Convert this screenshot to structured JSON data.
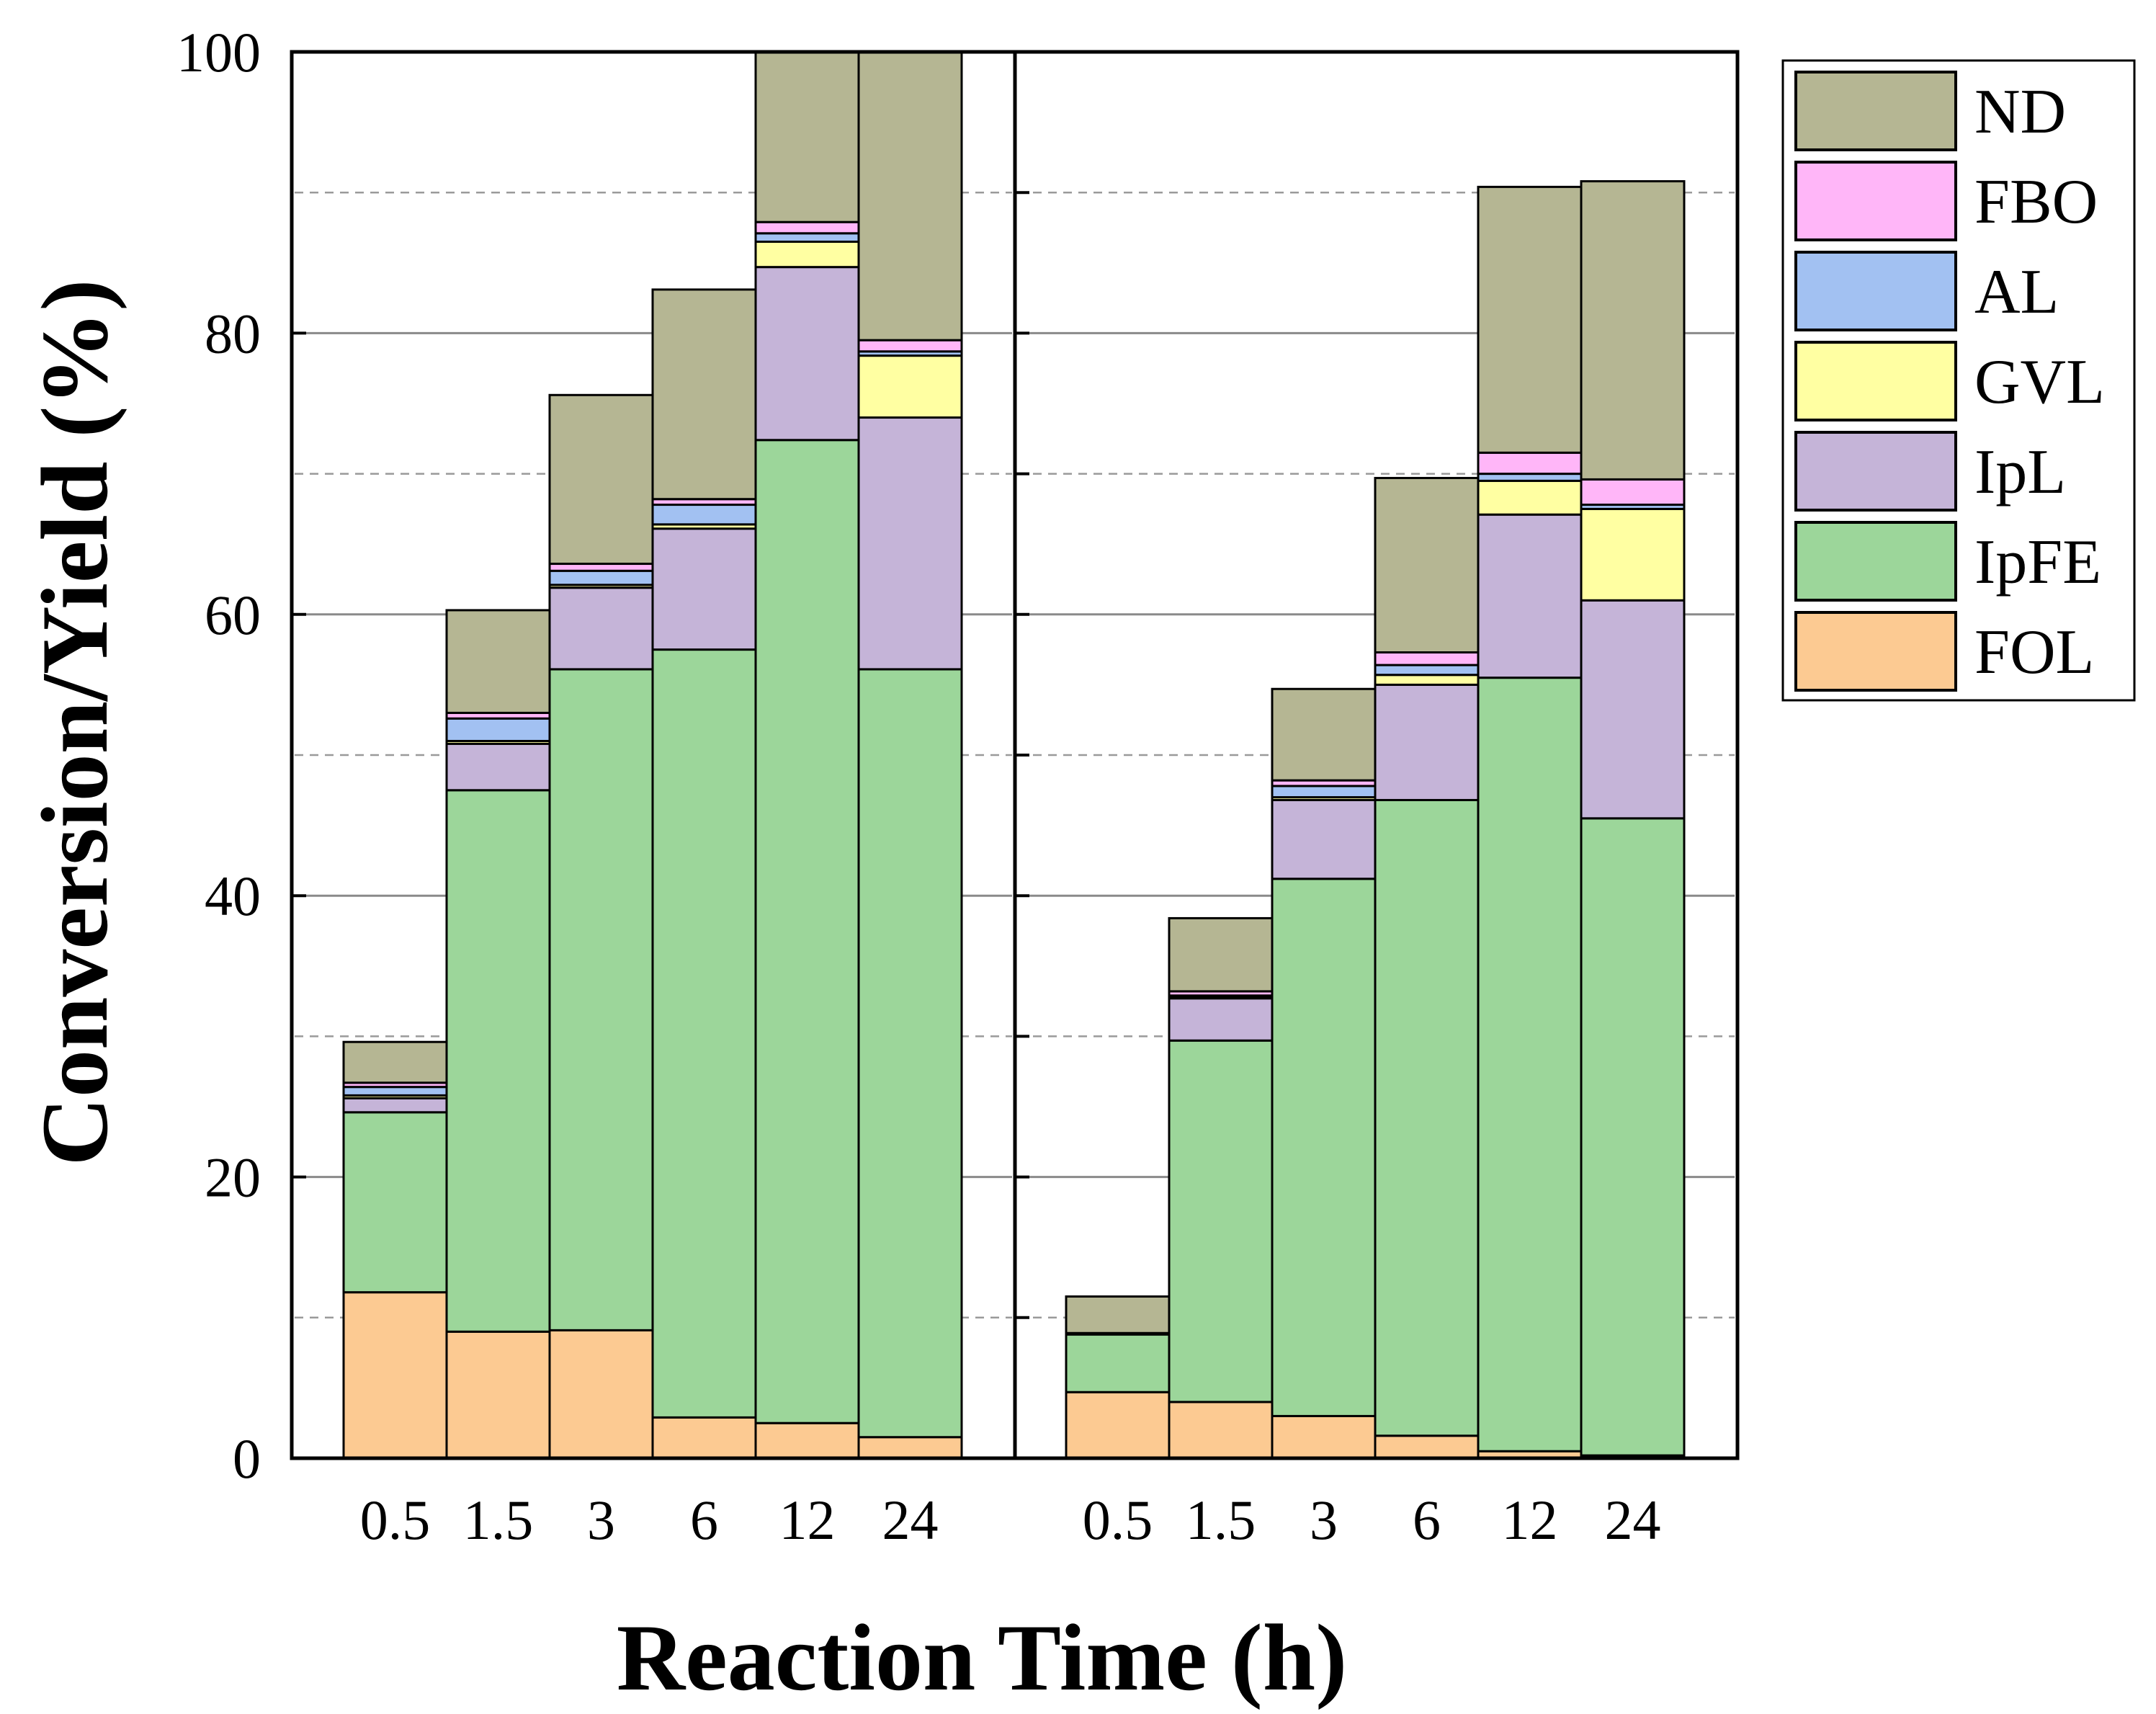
{
  "chart_data": {
    "type": "bar",
    "stacked": true,
    "ylabel": "Conversion/Yield (%)",
    "xlabel": "Reaction Time (h)",
    "ylim": [
      0,
      100
    ],
    "yticks": [
      0,
      20,
      40,
      60,
      80,
      100
    ],
    "categories": [
      "0.5",
      "1.5",
      "3",
      "6",
      "12",
      "24"
    ],
    "legend": {
      "position": "top-right",
      "order": [
        "ND",
        "FBO",
        "AL",
        "GVL",
        "IpL",
        "IpFE",
        "FOL"
      ]
    },
    "series_colors": {
      "FOL": "#FCCA92",
      "IpFE": "#9CD69A",
      "IpL": "#C5B4D8",
      "GVL": "#FFFFA2",
      "AL": "#A2C1F2",
      "FBO": "#FFB6F8",
      "ND": "#B5B693"
    },
    "panels": [
      {
        "name": "left",
        "series": [
          {
            "name": "FOL",
            "values": [
              11.8,
              9.0,
              9.1,
              2.9,
              2.5,
              1.5
            ]
          },
          {
            "name": "IpFE",
            "values": [
              12.8,
              38.5,
              47.0,
              54.6,
              69.9,
              54.6
            ]
          },
          {
            "name": "IpL",
            "values": [
              1.0,
              3.3,
              5.8,
              8.6,
              12.3,
              17.9
            ]
          },
          {
            "name": "GVL",
            "values": [
              0.2,
              0.2,
              0.2,
              0.3,
              1.8,
              4.4
            ]
          },
          {
            "name": "AL",
            "values": [
              0.6,
              1.6,
              1.0,
              1.4,
              0.6,
              0.3
            ]
          },
          {
            "name": "FBO",
            "values": [
              0.3,
              0.4,
              0.5,
              0.4,
              0.8,
              0.8
            ]
          },
          {
            "name": "ND",
            "values": [
              2.9,
              7.3,
              12.0,
              14.9,
              12.1,
              20.5
            ]
          }
        ]
      },
      {
        "name": "right",
        "ylim": [
          0,
          100
        ],
        "series": [
          {
            "name": "FOL",
            "values": [
              4.7,
              4.0,
              3.0,
              1.6,
              0.5,
              0.2
            ]
          },
          {
            "name": "IpFE",
            "values": [
              4.1,
              25.7,
              38.2,
              45.2,
              55.0,
              45.3
            ]
          },
          {
            "name": "IpL",
            "values": [
              0.1,
              3.0,
              5.6,
              8.2,
              11.6,
              15.5
            ]
          },
          {
            "name": "GVL",
            "values": [
              0.0,
              0.1,
              0.2,
              0.7,
              2.4,
              6.5
            ]
          },
          {
            "name": "AL",
            "values": [
              0.0,
              0.1,
              0.8,
              0.7,
              0.5,
              0.3
            ]
          },
          {
            "name": "FBO",
            "values": [
              0.0,
              0.3,
              0.4,
              0.9,
              1.5,
              1.8
            ]
          },
          {
            "name": "ND",
            "values": [
              2.6,
              5.2,
              6.5,
              12.4,
              18.9,
              21.2
            ]
          }
        ]
      }
    ]
  }
}
